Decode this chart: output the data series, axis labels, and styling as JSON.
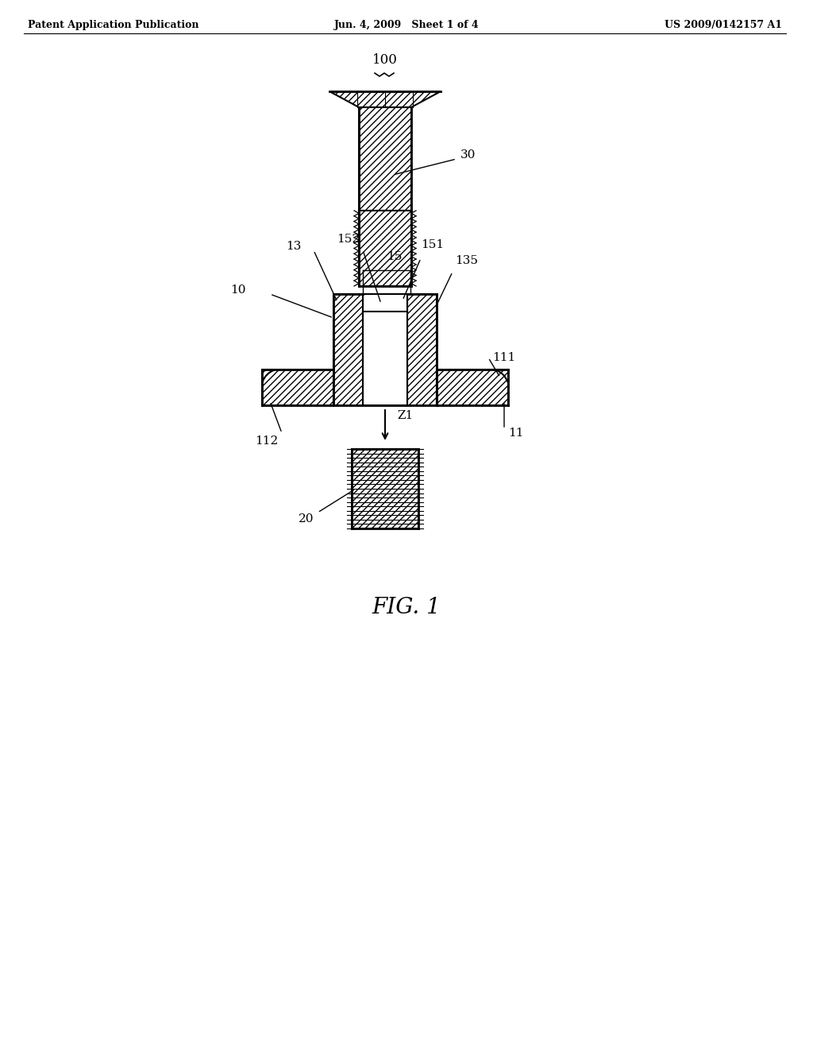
{
  "header_left": "Patent Application Publication",
  "header_mid": "Jun. 4, 2009   Sheet 1 of 4",
  "header_right": "US 2009/0142157 A1",
  "fig_label": "FIG. 1",
  "bg_color": "#ffffff",
  "label_100": "100",
  "label_30": "30",
  "label_10": "10",
  "label_13": "13",
  "label_15": "15",
  "label_151": "151",
  "label_152": "152",
  "label_135": "135",
  "label_111": "111",
  "label_11": "11",
  "label_112": "112",
  "label_Z1": "Z1",
  "label_20": "20"
}
